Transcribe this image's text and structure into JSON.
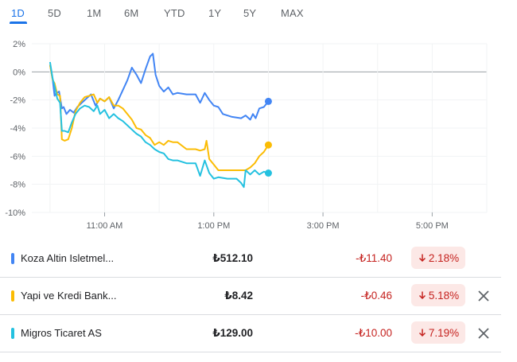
{
  "tabs": [
    {
      "label": "1D",
      "active": true
    },
    {
      "label": "5D",
      "active": false
    },
    {
      "label": "1M",
      "active": false
    },
    {
      "label": "6M",
      "active": false
    },
    {
      "label": "YTD",
      "active": false
    },
    {
      "label": "1Y",
      "active": false
    },
    {
      "label": "5Y",
      "active": false
    },
    {
      "label": "MAX",
      "active": false
    }
  ],
  "chart_data": {
    "type": "line",
    "x_unit": "time",
    "y_unit": "%",
    "ylim": [
      -10,
      2
    ],
    "y_ticks": [
      "2%",
      "0%",
      "-2%",
      "-4%",
      "-6%",
      "-8%",
      "-10%"
    ],
    "x_ticks": [
      "11:00 AM",
      "1:00 PM",
      "3:00 PM",
      "5:00 PM"
    ],
    "xlim": [
      "09:40",
      "18:00"
    ],
    "zero_line": true,
    "series": [
      {
        "name": "Koza Altin Isletmel...",
        "color": "#4285f4",
        "points": [
          [
            "10:00",
            0.5
          ],
          [
            "10:03",
            -0.6
          ],
          [
            "10:05",
            -1.7
          ],
          [
            "10:07",
            -1.5
          ],
          [
            "10:10",
            -1.4
          ],
          [
            "10:13",
            -2.6
          ],
          [
            "10:15",
            -2.5
          ],
          [
            "10:18",
            -3.0
          ],
          [
            "10:22",
            -2.7
          ],
          [
            "10:26",
            -2.9
          ],
          [
            "10:30",
            -2.5
          ],
          [
            "10:35",
            -2.2
          ],
          [
            "10:40",
            -1.9
          ],
          [
            "10:45",
            -1.6
          ],
          [
            "10:50",
            -2.4
          ],
          [
            "10:55",
            -1.9
          ],
          [
            "11:00",
            -2.1
          ],
          [
            "11:05",
            -1.8
          ],
          [
            "11:10",
            -2.6
          ],
          [
            "11:15",
            -2.0
          ],
          [
            "11:20",
            -1.3
          ],
          [
            "11:25",
            -0.6
          ],
          [
            "11:30",
            0.3
          ],
          [
            "11:35",
            -0.2
          ],
          [
            "11:40",
            -0.8
          ],
          [
            "11:45",
            0.2
          ],
          [
            "11:50",
            1.1
          ],
          [
            "11:53",
            1.3
          ],
          [
            "11:56",
            -0.2
          ],
          [
            "12:00",
            -1.0
          ],
          [
            "12:05",
            -1.4
          ],
          [
            "12:10",
            -1.1
          ],
          [
            "12:15",
            -1.6
          ],
          [
            "12:20",
            -1.5
          ],
          [
            "12:30",
            -1.6
          ],
          [
            "12:40",
            -1.6
          ],
          [
            "12:45",
            -2.2
          ],
          [
            "12:50",
            -1.5
          ],
          [
            "12:55",
            -2.0
          ],
          [
            "13:00",
            -2.4
          ],
          [
            "13:05",
            -2.5
          ],
          [
            "13:10",
            -3.0
          ],
          [
            "13:20",
            -3.2
          ],
          [
            "13:30",
            -3.3
          ],
          [
            "13:35",
            -3.1
          ],
          [
            "13:40",
            -3.4
          ],
          [
            "13:43",
            -3.0
          ],
          [
            "13:46",
            -3.3
          ],
          [
            "13:50",
            -2.6
          ],
          [
            "13:55",
            -2.5
          ],
          [
            "14:00",
            -2.1
          ]
        ]
      },
      {
        "name": "Yapi ve Kredi Bank...",
        "color": "#fbbc04",
        "points": [
          [
            "10:00",
            0.5
          ],
          [
            "10:03",
            -0.6
          ],
          [
            "10:05",
            -0.8
          ],
          [
            "10:08",
            -1.6
          ],
          [
            "10:11",
            -1.7
          ],
          [
            "10:13",
            -4.8
          ],
          [
            "10:16",
            -4.9
          ],
          [
            "10:20",
            -4.8
          ],
          [
            "10:24",
            -4.0
          ],
          [
            "10:28",
            -2.8
          ],
          [
            "10:33",
            -2.2
          ],
          [
            "10:38",
            -1.8
          ],
          [
            "10:43",
            -1.7
          ],
          [
            "10:48",
            -1.6
          ],
          [
            "10:52",
            -2.2
          ],
          [
            "10:55",
            -1.9
          ],
          [
            "11:00",
            -2.1
          ],
          [
            "11:05",
            -1.8
          ],
          [
            "11:10",
            -2.4
          ],
          [
            "11:15",
            -2.4
          ],
          [
            "11:20",
            -2.6
          ],
          [
            "11:25",
            -3.0
          ],
          [
            "11:30",
            -3.4
          ],
          [
            "11:35",
            -4.0
          ],
          [
            "11:40",
            -4.1
          ],
          [
            "11:45",
            -4.5
          ],
          [
            "11:50",
            -4.7
          ],
          [
            "11:55",
            -5.2
          ],
          [
            "12:00",
            -5.0
          ],
          [
            "12:05",
            -5.2
          ],
          [
            "12:10",
            -4.9
          ],
          [
            "12:15",
            -5.0
          ],
          [
            "12:20",
            -5.0
          ],
          [
            "12:30",
            -5.5
          ],
          [
            "12:40",
            -5.5
          ],
          [
            "12:45",
            -5.6
          ],
          [
            "12:50",
            -5.5
          ],
          [
            "12:52",
            -4.9
          ],
          [
            "12:55",
            -6.2
          ],
          [
            "13:00",
            -6.6
          ],
          [
            "13:05",
            -7.0
          ],
          [
            "13:15",
            -7.0
          ],
          [
            "13:25",
            -7.0
          ],
          [
            "13:32",
            -7.0
          ],
          [
            "13:35",
            -7.0
          ],
          [
            "13:40",
            -6.8
          ],
          [
            "13:45",
            -6.5
          ],
          [
            "13:50",
            -6.0
          ],
          [
            "13:55",
            -5.7
          ],
          [
            "14:00",
            -5.2
          ]
        ]
      },
      {
        "name": "Migros Ticaret AS",
        "color": "#24c1e0",
        "points": [
          [
            "10:00",
            0.7
          ],
          [
            "10:03",
            -0.5
          ],
          [
            "10:05",
            -1.0
          ],
          [
            "10:08",
            -1.9
          ],
          [
            "10:11",
            -2.2
          ],
          [
            "10:13",
            -4.2
          ],
          [
            "10:16",
            -4.2
          ],
          [
            "10:20",
            -4.3
          ],
          [
            "10:24",
            -3.6
          ],
          [
            "10:28",
            -3.0
          ],
          [
            "10:33",
            -2.6
          ],
          [
            "10:38",
            -2.4
          ],
          [
            "10:43",
            -2.5
          ],
          [
            "10:48",
            -2.8
          ],
          [
            "10:52",
            -2.4
          ],
          [
            "10:55",
            -3.0
          ],
          [
            "11:00",
            -2.7
          ],
          [
            "11:05",
            -3.3
          ],
          [
            "11:10",
            -3.0
          ],
          [
            "11:15",
            -3.3
          ],
          [
            "11:20",
            -3.5
          ],
          [
            "11:25",
            -3.8
          ],
          [
            "11:30",
            -4.1
          ],
          [
            "11:35",
            -4.4
          ],
          [
            "11:40",
            -4.6
          ],
          [
            "11:45",
            -5.0
          ],
          [
            "11:50",
            -5.2
          ],
          [
            "11:55",
            -5.5
          ],
          [
            "12:00",
            -5.7
          ],
          [
            "12:05",
            -5.8
          ],
          [
            "12:10",
            -6.2
          ],
          [
            "12:15",
            -6.3
          ],
          [
            "12:20",
            -6.3
          ],
          [
            "12:30",
            -6.5
          ],
          [
            "12:40",
            -6.5
          ],
          [
            "12:45",
            -7.4
          ],
          [
            "12:50",
            -6.3
          ],
          [
            "12:55",
            -7.2
          ],
          [
            "13:00",
            -7.6
          ],
          [
            "13:05",
            -7.5
          ],
          [
            "13:15",
            -7.6
          ],
          [
            "13:25",
            -7.6
          ],
          [
            "13:30",
            -7.9
          ],
          [
            "13:33",
            -8.2
          ],
          [
            "13:35",
            -7.0
          ],
          [
            "13:40",
            -7.3
          ],
          [
            "13:45",
            -7.0
          ],
          [
            "13:50",
            -7.3
          ],
          [
            "13:55",
            -7.1
          ],
          [
            "14:00",
            -7.2
          ]
        ]
      }
    ]
  },
  "stocks": [
    {
      "name": "Koza Altin Isletmel...",
      "price": "₺512.10",
      "change": "-₺11.40",
      "pct": "2.18%",
      "color": "#4285f4",
      "removable": false
    },
    {
      "name": "Yapi ve Kredi Bank...",
      "price": "₺8.42",
      "change": "-₺0.46",
      "pct": "5.18%",
      "color": "#fbbc04",
      "removable": true
    },
    {
      "name": "Migros Ticaret AS",
      "price": "₺129.00",
      "change": "-₺10.00",
      "pct": "7.19%",
      "color": "#24c1e0",
      "removable": true
    }
  ]
}
